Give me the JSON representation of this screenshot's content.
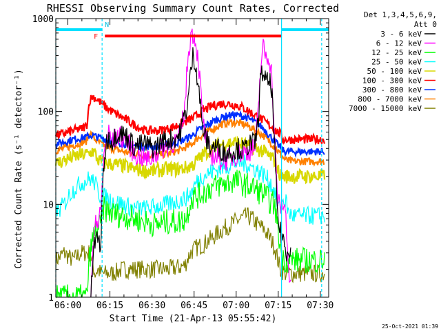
{
  "chart_data": {
    "type": "line",
    "title": "RHESSI Observing Summary Count Rates, Corrected",
    "xlabel": "Start Time (21-Apr-13 05:55:42)",
    "ylabel": "Corrected Count Rate (s⁻¹ detector⁻¹)",
    "x_unit": "minutes since 05:55:42 UT",
    "xlim": [
      0,
      97.3
    ],
    "ylim": [
      1,
      1000
    ],
    "yscale": "log",
    "x_ticks": [
      {
        "t": 4.3,
        "label": "06:00"
      },
      {
        "t": 19.3,
        "label": "06:15"
      },
      {
        "t": 34.3,
        "label": "06:30"
      },
      {
        "t": 49.3,
        "label": "06:45"
      },
      {
        "t": 64.3,
        "label": "07:00"
      },
      {
        "t": 79.3,
        "label": "07:15"
      },
      {
        "t": 94.3,
        "label": "07:30"
      }
    ],
    "y_ticks": [
      {
        "v": 1,
        "label": "1"
      },
      {
        "v": 10,
        "label": "10"
      },
      {
        "v": 100,
        "label": "100"
      },
      {
        "v": 1000,
        "label": "1000"
      }
    ],
    "legend": {
      "title": "Det 1,3,4,5,6,9,",
      "subtitle": "Att 0",
      "position": "right"
    },
    "flags": [
      {
        "name": "F",
        "label": "F",
        "color": "#ff0000",
        "t_start": 17.5,
        "t_end": 80.5,
        "value": 650
      },
      {
        "name": "N",
        "label": "N",
        "color": "#00e0ff",
        "t_start": 0,
        "t_end": 16.5,
        "value": 760
      },
      {
        "name": "N",
        "label": "",
        "color": "#00e0ff",
        "t_start": 80.5,
        "t_end": 97.3,
        "value": 760
      }
    ],
    "vertical_markers": [
      {
        "t": 0,
        "style": "dashed",
        "color": "#00e0ff"
      },
      {
        "t": 16.5,
        "style": "dashed",
        "color": "#00e0ff"
      },
      {
        "t": 80.5,
        "style": "solid",
        "color": "#00e0ff"
      },
      {
        "t": 94.8,
        "style": "dashed",
        "color": "#00e0ff"
      }
    ],
    "series": [
      {
        "name": "3 - 6 keV",
        "color": "#000000",
        "noise": 0.12,
        "x": [
          12.5,
          13.5,
          15,
          16,
          17,
          18,
          19,
          20,
          22,
          25,
          28,
          32,
          35,
          38,
          41,
          44,
          47,
          48,
          49,
          50,
          51,
          52,
          53,
          55,
          57,
          59,
          61,
          63,
          65,
          67,
          69,
          71,
          72,
          73,
          74,
          75,
          76,
          77,
          78,
          79,
          80,
          81,
          82,
          83,
          84
        ],
        "y": [
          1,
          3.5,
          4.5,
          3.5,
          25,
          45,
          55,
          48,
          60,
          55,
          42,
          45,
          40,
          48,
          50,
          55,
          120,
          250,
          420,
          300,
          180,
          80,
          55,
          42,
          42,
          38,
          36,
          38,
          40,
          38,
          45,
          45,
          70,
          220,
          280,
          200,
          210,
          180,
          40,
          8,
          5,
          4.5,
          3,
          3.5,
          3.2
        ]
      },
      {
        "name": "6 - 12 keV",
        "color": "#ff00ff",
        "noise": 0.12,
        "x": [
          12.5,
          14,
          15,
          16,
          17,
          18,
          19,
          20,
          22,
          25,
          28,
          31,
          33,
          35,
          38,
          41,
          44,
          46,
          47,
          48,
          49,
          50,
          51,
          52,
          53,
          55,
          57,
          59,
          61,
          63,
          65,
          67,
          69,
          71,
          72,
          73,
          74,
          75,
          76,
          77,
          78,
          79,
          80,
          81,
          82,
          83,
          84
        ],
        "y": [
          1,
          8,
          6,
          8,
          30,
          50,
          60,
          45,
          55,
          50,
          35,
          32,
          30,
          34,
          40,
          45,
          50,
          110,
          350,
          650,
          700,
          550,
          300,
          120,
          60,
          35,
          32,
          30,
          30,
          32,
          35,
          36,
          38,
          40,
          80,
          300,
          500,
          380,
          400,
          250,
          50,
          12,
          9,
          10,
          8,
          2,
          1
        ]
      },
      {
        "name": "12 - 25 keV",
        "color": "#00ff00",
        "noise": 0.14,
        "x": [
          0,
          4,
          8,
          11,
          12,
          13,
          14,
          15,
          16,
          17,
          20,
          24,
          28,
          32,
          36,
          40,
          44,
          46,
          47,
          48,
          49,
          50,
          52,
          55,
          58,
          61,
          64,
          66,
          68,
          70,
          72,
          74,
          76,
          78,
          79,
          80,
          81,
          82,
          83,
          85,
          88,
          92,
          96
        ],
        "y": [
          1,
          1,
          1,
          1,
          2.6,
          4,
          5,
          5.5,
          6,
          9,
          8,
          7.5,
          7,
          6.5,
          6,
          6.5,
          6.5,
          7,
          8,
          11,
          12,
          12,
          13,
          15,
          16,
          17,
          18,
          17,
          16,
          15.5,
          14,
          13,
          11,
          10,
          6,
          3.5,
          2.5,
          2.5,
          2.5,
          2.5,
          2.5,
          2.5,
          2.5
        ]
      },
      {
        "name": "25 - 50 keV",
        "color": "#00ffff",
        "noise": 0.1,
        "x": [
          0,
          3,
          5,
          7,
          9,
          11,
          12,
          13,
          14,
          15,
          16,
          18,
          20,
          24,
          28,
          32,
          36,
          40,
          44,
          46,
          48,
          50,
          52,
          55,
          58,
          61,
          64,
          66,
          68,
          70,
          72,
          74,
          76,
          78,
          79,
          80,
          81,
          82,
          83,
          85,
          88,
          92,
          96
        ],
        "y": [
          8,
          10,
          13,
          15,
          17,
          18,
          19,
          18,
          17,
          14,
          12,
          12,
          11,
          10,
          9,
          9,
          9.5,
          10,
          11,
          11.5,
          13,
          17,
          20,
          22,
          24,
          26,
          28,
          28,
          27,
          25,
          23,
          21,
          18,
          14,
          10,
          9,
          11,
          11,
          8,
          7.5,
          7.5,
          7.5,
          7.5
        ]
      },
      {
        "name": "50 - 100 keV",
        "color": "#d8d800",
        "noise": 0.08,
        "x": [
          0,
          3,
          6,
          9,
          12,
          13,
          14,
          15,
          17,
          20,
          24,
          28,
          32,
          36,
          40,
          44,
          47,
          49,
          50,
          52,
          54,
          56,
          58,
          60,
          62,
          64,
          66,
          68,
          70,
          72,
          74,
          76,
          78,
          79,
          80,
          81,
          82,
          84,
          86,
          90,
          96
        ],
        "y": [
          27,
          30,
          32,
          34,
          35,
          38,
          35,
          30,
          28,
          27,
          26,
          24,
          23,
          23,
          24,
          24,
          25,
          27,
          29,
          33,
          37,
          40,
          43,
          45,
          46,
          46,
          45,
          43,
          41,
          39,
          37,
          33,
          30,
          24,
          21,
          20,
          20,
          20,
          20,
          20,
          20
        ]
      },
      {
        "name": "100 - 300 keV",
        "color": "#ff0000",
        "noise": 0.05,
        "x": [
          0,
          3,
          6,
          9,
          11,
          12,
          13,
          14,
          16,
          18,
          20,
          24,
          28,
          32,
          36,
          40,
          44,
          47,
          49,
          50,
          52,
          54,
          56,
          58,
          60,
          62,
          64,
          66,
          68,
          70,
          72,
          74,
          76,
          78,
          79,
          80,
          81,
          82,
          84,
          86,
          90,
          96
        ],
        "y": [
          55,
          58,
          62,
          65,
          70,
          130,
          145,
          140,
          125,
          110,
          100,
          85,
          72,
          62,
          62,
          65,
          72,
          80,
          85,
          90,
          100,
          108,
          115,
          120,
          122,
          120,
          118,
          112,
          105,
          95,
          88,
          80,
          72,
          65,
          60,
          58,
          50,
          50,
          50,
          50,
          50,
          50
        ]
      },
      {
        "name": "300 - 800 keV",
        "color": "#0030ff",
        "noise": 0.04,
        "x": [
          0,
          3,
          6,
          9,
          11,
          12,
          13,
          14,
          16,
          18,
          20,
          24,
          28,
          32,
          36,
          40,
          44,
          47,
          49,
          50,
          52,
          54,
          56,
          58,
          60,
          62,
          64,
          66,
          68,
          70,
          72,
          74,
          76,
          78,
          79,
          80,
          81,
          82,
          84,
          86,
          90,
          96
        ],
        "y": [
          45,
          47,
          50,
          52,
          53,
          55,
          55,
          54,
          52,
          50,
          48,
          45,
          43,
          42,
          42,
          44,
          47,
          52,
          56,
          60,
          66,
          72,
          78,
          83,
          88,
          91,
          92,
          90,
          86,
          80,
          74,
          66,
          56,
          48,
          44,
          42,
          38,
          37,
          37,
          37,
          37,
          37
        ]
      },
      {
        "name": "800 - 7000 keV",
        "color": "#ff8000",
        "noise": 0.04,
        "x": [
          0,
          3,
          6,
          9,
          11,
          12,
          13,
          14,
          16,
          18,
          20,
          24,
          28,
          32,
          36,
          40,
          44,
          47,
          49,
          50,
          52,
          54,
          56,
          58,
          60,
          62,
          64,
          66,
          68,
          70,
          72,
          74,
          76,
          78,
          79,
          80,
          81,
          82,
          84,
          86,
          90,
          96
        ],
        "y": [
          38,
          40,
          43,
          46,
          48,
          60,
          55,
          50,
          45,
          42,
          40,
          37,
          35,
          34,
          34,
          35,
          38,
          42,
          46,
          50,
          55,
          60,
          65,
          70,
          74,
          76,
          76,
          74,
          71,
          66,
          60,
          55,
          48,
          42,
          38,
          35,
          32,
          30,
          29,
          29,
          29,
          29
        ]
      },
      {
        "name": "7000 - 15000 keV",
        "color": "#808000",
        "noise": 0.1,
        "x": [
          0,
          3,
          6,
          9,
          12,
          14,
          15,
          16,
          20,
          24,
          28,
          32,
          36,
          40,
          44,
          46,
          47,
          48,
          49,
          50,
          52,
          54,
          56,
          58,
          60,
          62,
          64,
          66,
          68,
          70,
          72,
          74,
          76,
          78,
          80,
          82,
          86,
          90,
          96
        ],
        "y": [
          2.5,
          3,
          2.5,
          3,
          3,
          1.8,
          2,
          1.8,
          1.8,
          2,
          2,
          2,
          2,
          2,
          2.1,
          2.2,
          2.6,
          3,
          3.2,
          3.4,
          3.6,
          4,
          4.4,
          5,
          5.5,
          6,
          6.5,
          7,
          7.5,
          7,
          6,
          5.5,
          4.5,
          3.5,
          2,
          1.8,
          1.8,
          1.8,
          1.8
        ]
      }
    ]
  },
  "footer_timestamp": "25-Oct-2021 01:39"
}
